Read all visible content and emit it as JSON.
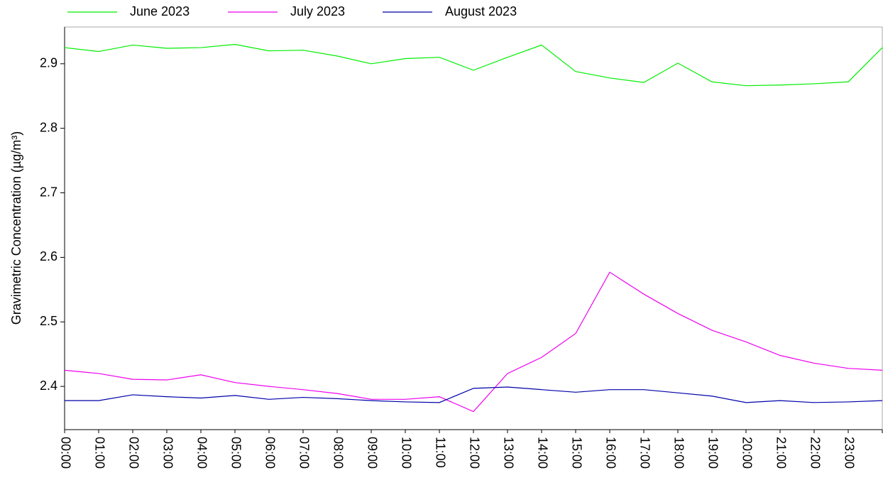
{
  "chart_data": {
    "type": "line",
    "y_label": "Gravimetric Concentration  (µg/m³)",
    "categories": [
      "00:00",
      "01:00",
      "02:00",
      "03:00",
      "04:00",
      "05:00",
      "06:00",
      "07:00",
      "08:00",
      "09:00",
      "10:00",
      "11:00",
      "12:00",
      "13:00",
      "14:00",
      "15:00",
      "16:00",
      "17:00",
      "18:00",
      "19:00",
      "20:00",
      "21:00",
      "22:00",
      "23:00",
      null
    ],
    "series": [
      {
        "name": "June 2023",
        "color": "#00ee00",
        "values": [
          2.925,
          2.919,
          2.929,
          2.924,
          2.925,
          2.93,
          2.92,
          2.921,
          2.912,
          2.9,
          2.908,
          2.91,
          2.89,
          2.91,
          2.929,
          2.888,
          2.878,
          2.871,
          2.901,
          2.872,
          2.866,
          2.867,
          2.869,
          2.872,
          2.925
        ]
      },
      {
        "name": "July 2023",
        "color": "#ee00ee",
        "values": [
          2.425,
          2.42,
          2.411,
          2.41,
          2.418,
          2.406,
          2.4,
          2.395,
          2.389,
          2.38,
          2.38,
          2.384,
          2.361,
          2.42,
          2.445,
          2.482,
          2.577,
          2.543,
          2.513,
          2.487,
          2.469,
          2.448,
          2.436,
          2.428,
          2.425
        ]
      },
      {
        "name": "August 2023",
        "color": "#0000aa",
        "values": [
          2.378,
          2.378,
          2.387,
          2.384,
          2.382,
          2.386,
          2.38,
          2.383,
          2.381,
          2.378,
          2.376,
          2.375,
          2.397,
          2.399,
          2.395,
          2.391,
          2.395,
          2.395,
          2.39,
          2.385,
          2.375,
          2.378,
          2.375,
          2.376,
          2.378
        ]
      }
    ],
    "ylim": [
      2.333,
      2.957
    ],
    "yticks": [
      {
        "value": 2.4,
        "label": "2.4"
      },
      {
        "value": 2.5,
        "label": "2.5"
      },
      {
        "value": 2.6,
        "label": "2.6"
      },
      {
        "value": 2.7,
        "label": "2.7"
      },
      {
        "value": 2.8,
        "label": "2.8"
      },
      {
        "value": 2.9,
        "label": "2.9"
      }
    ],
    "legend": "top"
  }
}
